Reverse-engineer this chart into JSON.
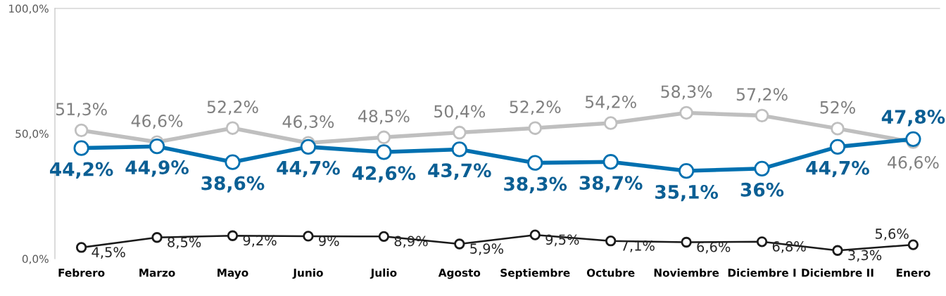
{
  "chart_data": {
    "type": "line",
    "categories": [
      "Febrero",
      "Marzo",
      "Mayo",
      "Junio",
      "Julio",
      "Agosto",
      "Septiembre",
      "Octubre",
      "Noviembre",
      "Diciembre I",
      "Diciembre II",
      "Enero"
    ],
    "series": [
      {
        "color": "#bfbfbf",
        "values": [
          51.3,
          46.6,
          52.2,
          46.3,
          48.5,
          50.4,
          52.2,
          54.2,
          58.3,
          57.2,
          52,
          46.6
        ],
        "value_labels": [
          "51,3%",
          "46,6%",
          "52,2%",
          "46,3%",
          "48,5%",
          "50,4%",
          "52,2%",
          "54,2%",
          "58,3%",
          "57,2%",
          "52%",
          "46,6%"
        ]
      },
      {
        "color": "#0070b0",
        "values": [
          44.2,
          44.9,
          38.6,
          44.7,
          42.6,
          43.7,
          38.3,
          38.7,
          35.1,
          36,
          44.7,
          47.8
        ],
        "value_labels": [
          "44,2%",
          "44,9%",
          "38,6%",
          "44,7%",
          "42,6%",
          "43,7%",
          "38,3%",
          "38,7%",
          "35,1%",
          "36%",
          "44,7%",
          "47,8%"
        ]
      },
      {
        "color": "#1a1a1a",
        "values": [
          4.5,
          8.5,
          9.2,
          9,
          8.9,
          5.9,
          9.5,
          7.1,
          6.6,
          6.8,
          3.3,
          5.6
        ],
        "value_labels": [
          "4,5%",
          "8,5%",
          "9,2%",
          "9%",
          "8,9%",
          "5,9%",
          "9,5%",
          "7,1%",
          "6,6%",
          "6,8%",
          "3,3%",
          "5,6%"
        ]
      }
    ],
    "ylim": [
      0,
      100
    ],
    "yticks": [
      {
        "value": 0,
        "label": "0,0%"
      },
      {
        "value": 50,
        "label": "50,0%"
      },
      {
        "value": 100,
        "label": "100,0%"
      }
    ],
    "grid": false,
    "legend": false,
    "marker": "circle",
    "line_style": "solid"
  }
}
